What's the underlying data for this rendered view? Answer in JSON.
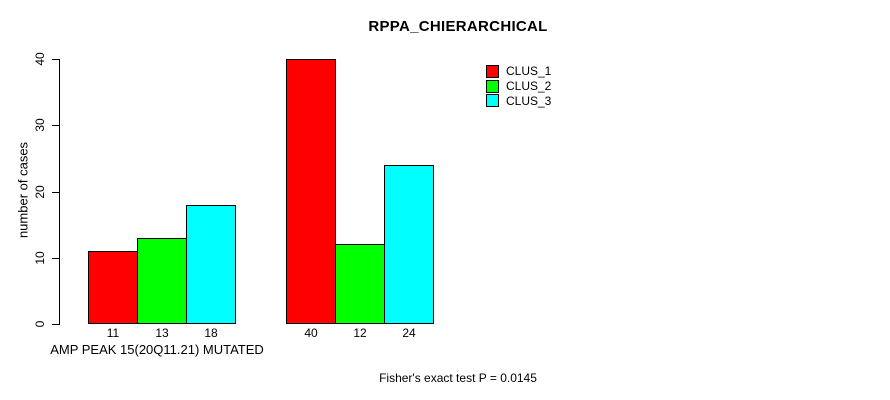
{
  "chart_data": {
    "type": "bar",
    "title": "RPPA_CHIERARCHICAL",
    "ylabel": "number of cases",
    "xlabel": "AMP PEAK 15(20Q11.21) MUTATED",
    "footnote": "Fisher's exact test P = 0.0145",
    "ylim": [
      0,
      40
    ],
    "yticks": [
      0,
      10,
      20,
      30,
      40
    ],
    "num_groups": 2,
    "series": [
      {
        "name": "CLUS_1",
        "color": "#ff0000",
        "values": [
          11,
          40
        ]
      },
      {
        "name": "CLUS_2",
        "color": "#00ff00",
        "values": [
          13,
          12
        ]
      },
      {
        "name": "CLUS_3",
        "color": "#00ffff",
        "values": [
          18,
          24
        ]
      }
    ],
    "bar_value_labels": true,
    "legend_position": "top-right",
    "grid": false,
    "background_color": "#ffffff",
    "axis_color": "#000000",
    "text_color": "#000000"
  }
}
